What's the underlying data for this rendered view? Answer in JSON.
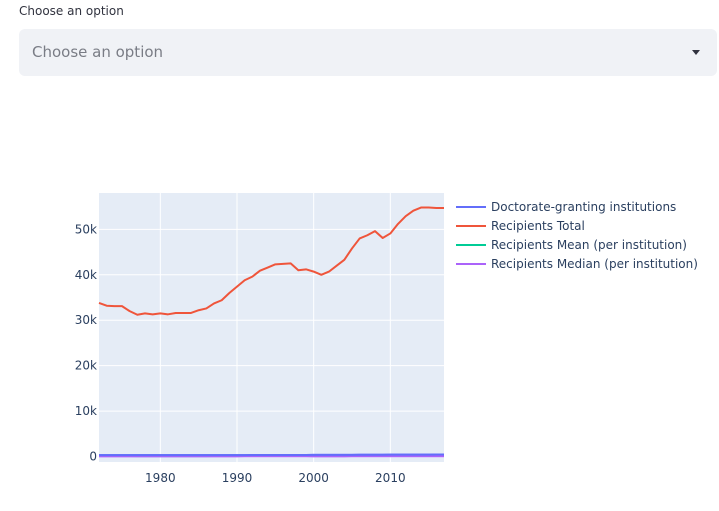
{
  "select": {
    "label": "Choose an option",
    "placeholder": "Choose an option"
  },
  "chart_data": {
    "type": "line",
    "title": "",
    "xlabel": "",
    "ylabel": "",
    "xlim": [
      1972,
      2017
    ],
    "ylim": [
      -1200,
      58000
    ],
    "x_ticks": [
      1980,
      1990,
      2000,
      2010
    ],
    "y_ticks": [
      0,
      10000,
      20000,
      30000,
      40000,
      50000
    ],
    "y_tick_labels": [
      "0",
      "10k",
      "20k",
      "30k",
      "40k",
      "50k"
    ],
    "grid": true,
    "legend_position": "right",
    "background": "#e5ecf6",
    "x": [
      1972,
      1973,
      1974,
      1975,
      1976,
      1977,
      1978,
      1979,
      1980,
      1981,
      1982,
      1983,
      1984,
      1985,
      1986,
      1987,
      1988,
      1989,
      1990,
      1991,
      1992,
      1993,
      1994,
      1995,
      1996,
      1997,
      1998,
      1999,
      2000,
      2001,
      2002,
      2003,
      2004,
      2005,
      2006,
      2007,
      2008,
      2009,
      2010,
      2011,
      2012,
      2013,
      2014,
      2015,
      2016,
      2017
    ],
    "series": [
      {
        "name": "Doctorate-granting institutions",
        "color": "#636efa",
        "values": [
          300,
          300,
          300,
          300,
          300,
          300,
          300,
          300,
          305,
          305,
          305,
          310,
          310,
          310,
          315,
          315,
          320,
          320,
          325,
          325,
          330,
          330,
          335,
          335,
          340,
          340,
          345,
          350,
          355,
          360,
          365,
          370,
          375,
          380,
          390,
          395,
          400,
          405,
          410,
          415,
          420,
          425,
          430,
          435,
          440,
          445
        ]
      },
      {
        "name": "Recipients Total",
        "color": "#ef553b",
        "values": [
          33800,
          33200,
          33100,
          33100,
          32000,
          31200,
          31500,
          31300,
          31500,
          31300,
          31600,
          31600,
          31600,
          32200,
          32600,
          33700,
          34400,
          36000,
          37400,
          38800,
          39600,
          40900,
          41600,
          42300,
          42400,
          42500,
          41000,
          41200,
          40700,
          40000,
          40700,
          42000,
          43300,
          45800,
          48000,
          48700,
          49600,
          48100,
          49100,
          51200,
          52900,
          54100,
          54800,
          54800,
          54700,
          54700
        ]
      },
      {
        "name": "Recipients Mean (per institution)",
        "color": "#00cc96",
        "values": [
          112,
          110,
          110,
          110,
          107,
          104,
          105,
          104,
          103,
          103,
          104,
          102,
          102,
          104,
          104,
          107,
          107,
          112,
          115,
          119,
          120,
          124,
          124,
          126,
          125,
          125,
          119,
          118,
          115,
          111,
          112,
          114,
          115,
          121,
          123,
          123,
          124,
          119,
          120,
          123,
          126,
          127,
          127,
          126,
          124,
          123
        ]
      },
      {
        "name": "Recipients Median (per institution)",
        "color": "#ab63fa",
        "values": [
          50,
          50,
          50,
          50,
          48,
          47,
          47,
          47,
          46,
          46,
          46,
          45,
          45,
          46,
          46,
          47,
          47,
          49,
          51,
          52,
          52,
          54,
          54,
          55,
          55,
          55,
          52,
          52,
          51,
          49,
          49,
          50,
          50,
          53,
          54,
          54,
          54,
          52,
          52,
          54,
          55,
          55,
          55,
          55,
          54,
          54
        ]
      }
    ]
  }
}
